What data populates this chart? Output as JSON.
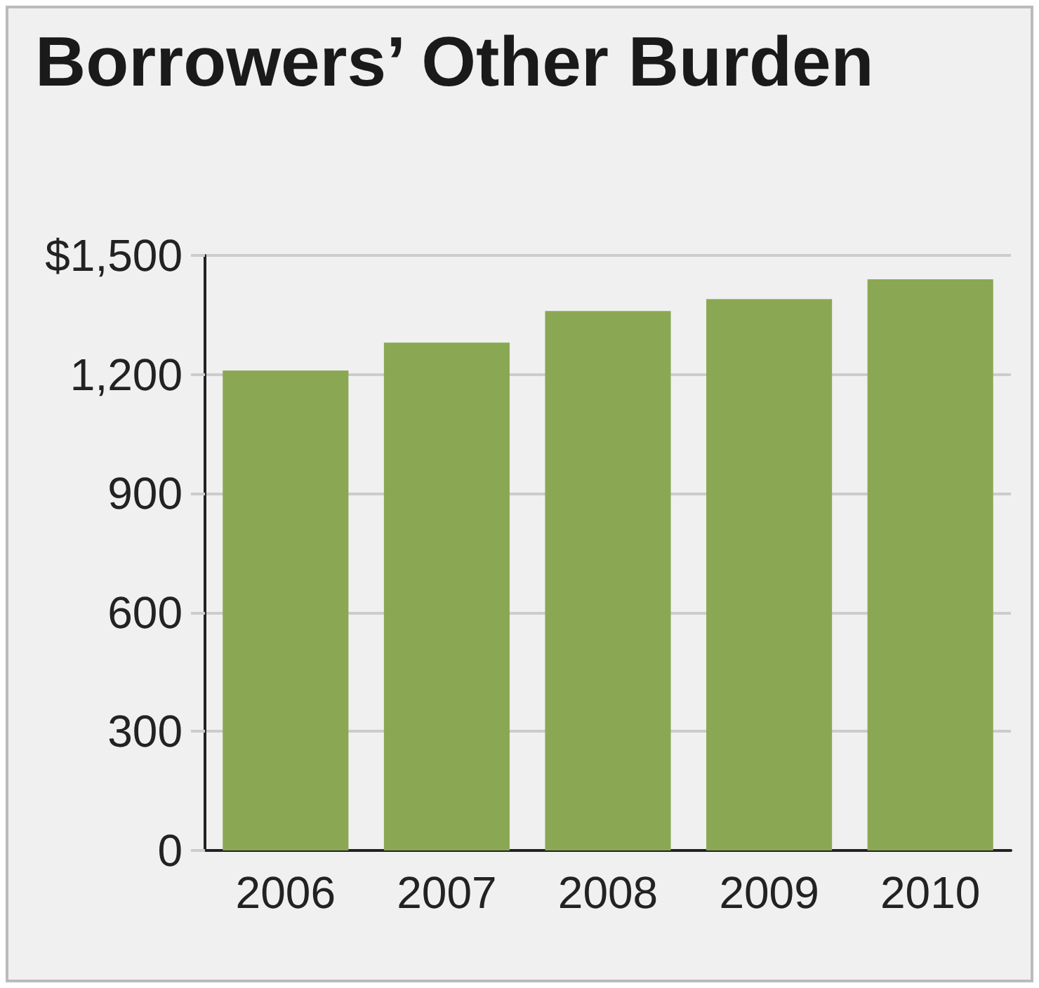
{
  "chart_data": {
    "type": "bar",
    "title": "Borrowers’ Other Burden",
    "categories": [
      "2006",
      "2007",
      "2008",
      "2009",
      "2010"
    ],
    "values": [
      1210,
      1280,
      1360,
      1390,
      1440
    ],
    "color": "#8aa853",
    "ylim": [
      0,
      1500
    ],
    "yticks": [
      0,
      300,
      600,
      900,
      {
        "value": 1200,
        "label": "1,200"
      },
      {
        "value": 1500,
        "label": "$1,500"
      }
    ],
    "grid": "y"
  }
}
